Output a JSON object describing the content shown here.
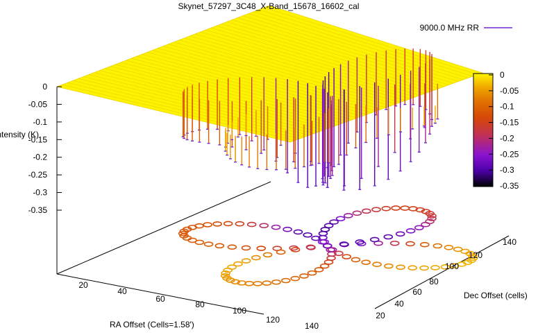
{
  "chart_data": {
    "type": "surface3d",
    "title": "Skynet_57297_3C48_X-Band_15678_16602_cal",
    "legend": {
      "label": "9000.0 MHz RR",
      "color": "#6b2bd6",
      "position": "top-right"
    },
    "zlabel": "Intensity (K)",
    "xlabel": "RA Offset (Cells=1.58')",
    "ylabel": "Dec Offset (cells)",
    "zticks": [
      "0",
      "-0.05",
      "-0.1",
      "-0.15",
      "-0.2",
      "-0.25",
      "-0.3",
      "-0.35"
    ],
    "xticks": [
      "20",
      "40",
      "60",
      "80",
      "100",
      "120",
      "140"
    ],
    "yticks": [
      "20",
      "40",
      "60",
      "80",
      "100",
      "120",
      "140"
    ],
    "colorbar": {
      "ticks": [
        "0",
        "-0.05",
        "-0.1",
        "-0.15",
        "-0.2",
        "-0.25",
        "-0.3",
        "-0.35"
      ],
      "colors": [
        "#000000",
        "#4b00a8",
        "#8a14d0",
        "#c0305a",
        "#d4460a",
        "#e07000",
        "#f0a800",
        "#fff500"
      ]
    },
    "zlim": [
      -0.35,
      0
    ],
    "xlim": [
      10,
      150
    ],
    "ylim": [
      20,
      150
    ],
    "scan_pattern": "daisy",
    "minimum": {
      "ra": 72,
      "dec": 108,
      "value": -0.35
    }
  }
}
